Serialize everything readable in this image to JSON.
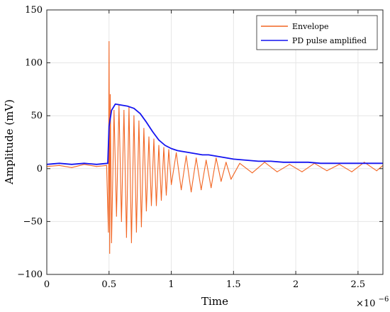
{
  "chart_data": {
    "type": "line",
    "title": "",
    "xlabel": "Time",
    "ylabel": "Amplitude (mV)",
    "x_multiplier_label": "×10",
    "x_multiplier_exp": "−6",
    "xlim": [
      0,
      2.7
    ],
    "ylim": [
      -100,
      150
    ],
    "x_ticks": [
      0,
      0.5,
      1,
      1.5,
      2,
      2.5
    ],
    "x_tick_labels": [
      "0",
      "0.5",
      "1",
      "1.5",
      "2",
      "2.5"
    ],
    "y_ticks": [
      -100,
      -50,
      0,
      50,
      100,
      150
    ],
    "y_tick_labels": [
      "−100",
      "−50",
      "0",
      "50",
      "100",
      "150"
    ],
    "grid": true,
    "legend_position": "top-right",
    "series": [
      {
        "name": "Envelope",
        "color": "#f26522",
        "x": [
          0,
          0.1,
          0.2,
          0.3,
          0.4,
          0.48,
          0.495,
          0.5,
          0.505,
          0.51,
          0.52,
          0.54,
          0.56,
          0.58,
          0.6,
          0.62,
          0.64,
          0.66,
          0.68,
          0.7,
          0.72,
          0.74,
          0.76,
          0.78,
          0.8,
          0.82,
          0.84,
          0.86,
          0.88,
          0.9,
          0.92,
          0.94,
          0.96,
          0.98,
          1.0,
          1.04,
          1.08,
          1.12,
          1.16,
          1.2,
          1.24,
          1.28,
          1.32,
          1.36,
          1.4,
          1.44,
          1.48,
          1.55,
          1.65,
          1.75,
          1.85,
          1.95,
          2.05,
          2.15,
          2.25,
          2.35,
          2.45,
          2.55,
          2.65,
          2.7
        ],
        "y": [
          2,
          3,
          1,
          4,
          2,
          3,
          -60,
          120,
          -80,
          70,
          -70,
          55,
          -45,
          60,
          -50,
          55,
          -65,
          58,
          -70,
          50,
          -60,
          45,
          -55,
          38,
          -40,
          30,
          -35,
          28,
          -35,
          22,
          -30,
          20,
          -25,
          18,
          -15,
          15,
          -20,
          12,
          -22,
          10,
          -20,
          8,
          -18,
          10,
          -12,
          6,
          -10,
          5,
          -4,
          6,
          -3,
          4,
          -3,
          5,
          -2,
          4,
          -3,
          6,
          -2,
          3
        ]
      },
      {
        "name": "PD pulse amplified",
        "color": "#1414f0",
        "x": [
          0,
          0.1,
          0.2,
          0.3,
          0.4,
          0.49,
          0.5,
          0.52,
          0.55,
          0.6,
          0.65,
          0.7,
          0.75,
          0.8,
          0.85,
          0.9,
          0.95,
          1.0,
          1.05,
          1.1,
          1.15,
          1.2,
          1.25,
          1.3,
          1.35,
          1.4,
          1.45,
          1.5,
          1.6,
          1.7,
          1.8,
          1.9,
          2.0,
          2.1,
          2.2,
          2.3,
          2.4,
          2.5,
          2.6,
          2.7
        ],
        "y": [
          4,
          5,
          4,
          5,
          4,
          5,
          40,
          55,
          61,
          60,
          59,
          57,
          52,
          44,
          35,
          27,
          22,
          19,
          17,
          16,
          15,
          14,
          13,
          13,
          12,
          11,
          10,
          9,
          8,
          7,
          7,
          6,
          6,
          6,
          5,
          5,
          5,
          5,
          5,
          5
        ]
      }
    ]
  }
}
